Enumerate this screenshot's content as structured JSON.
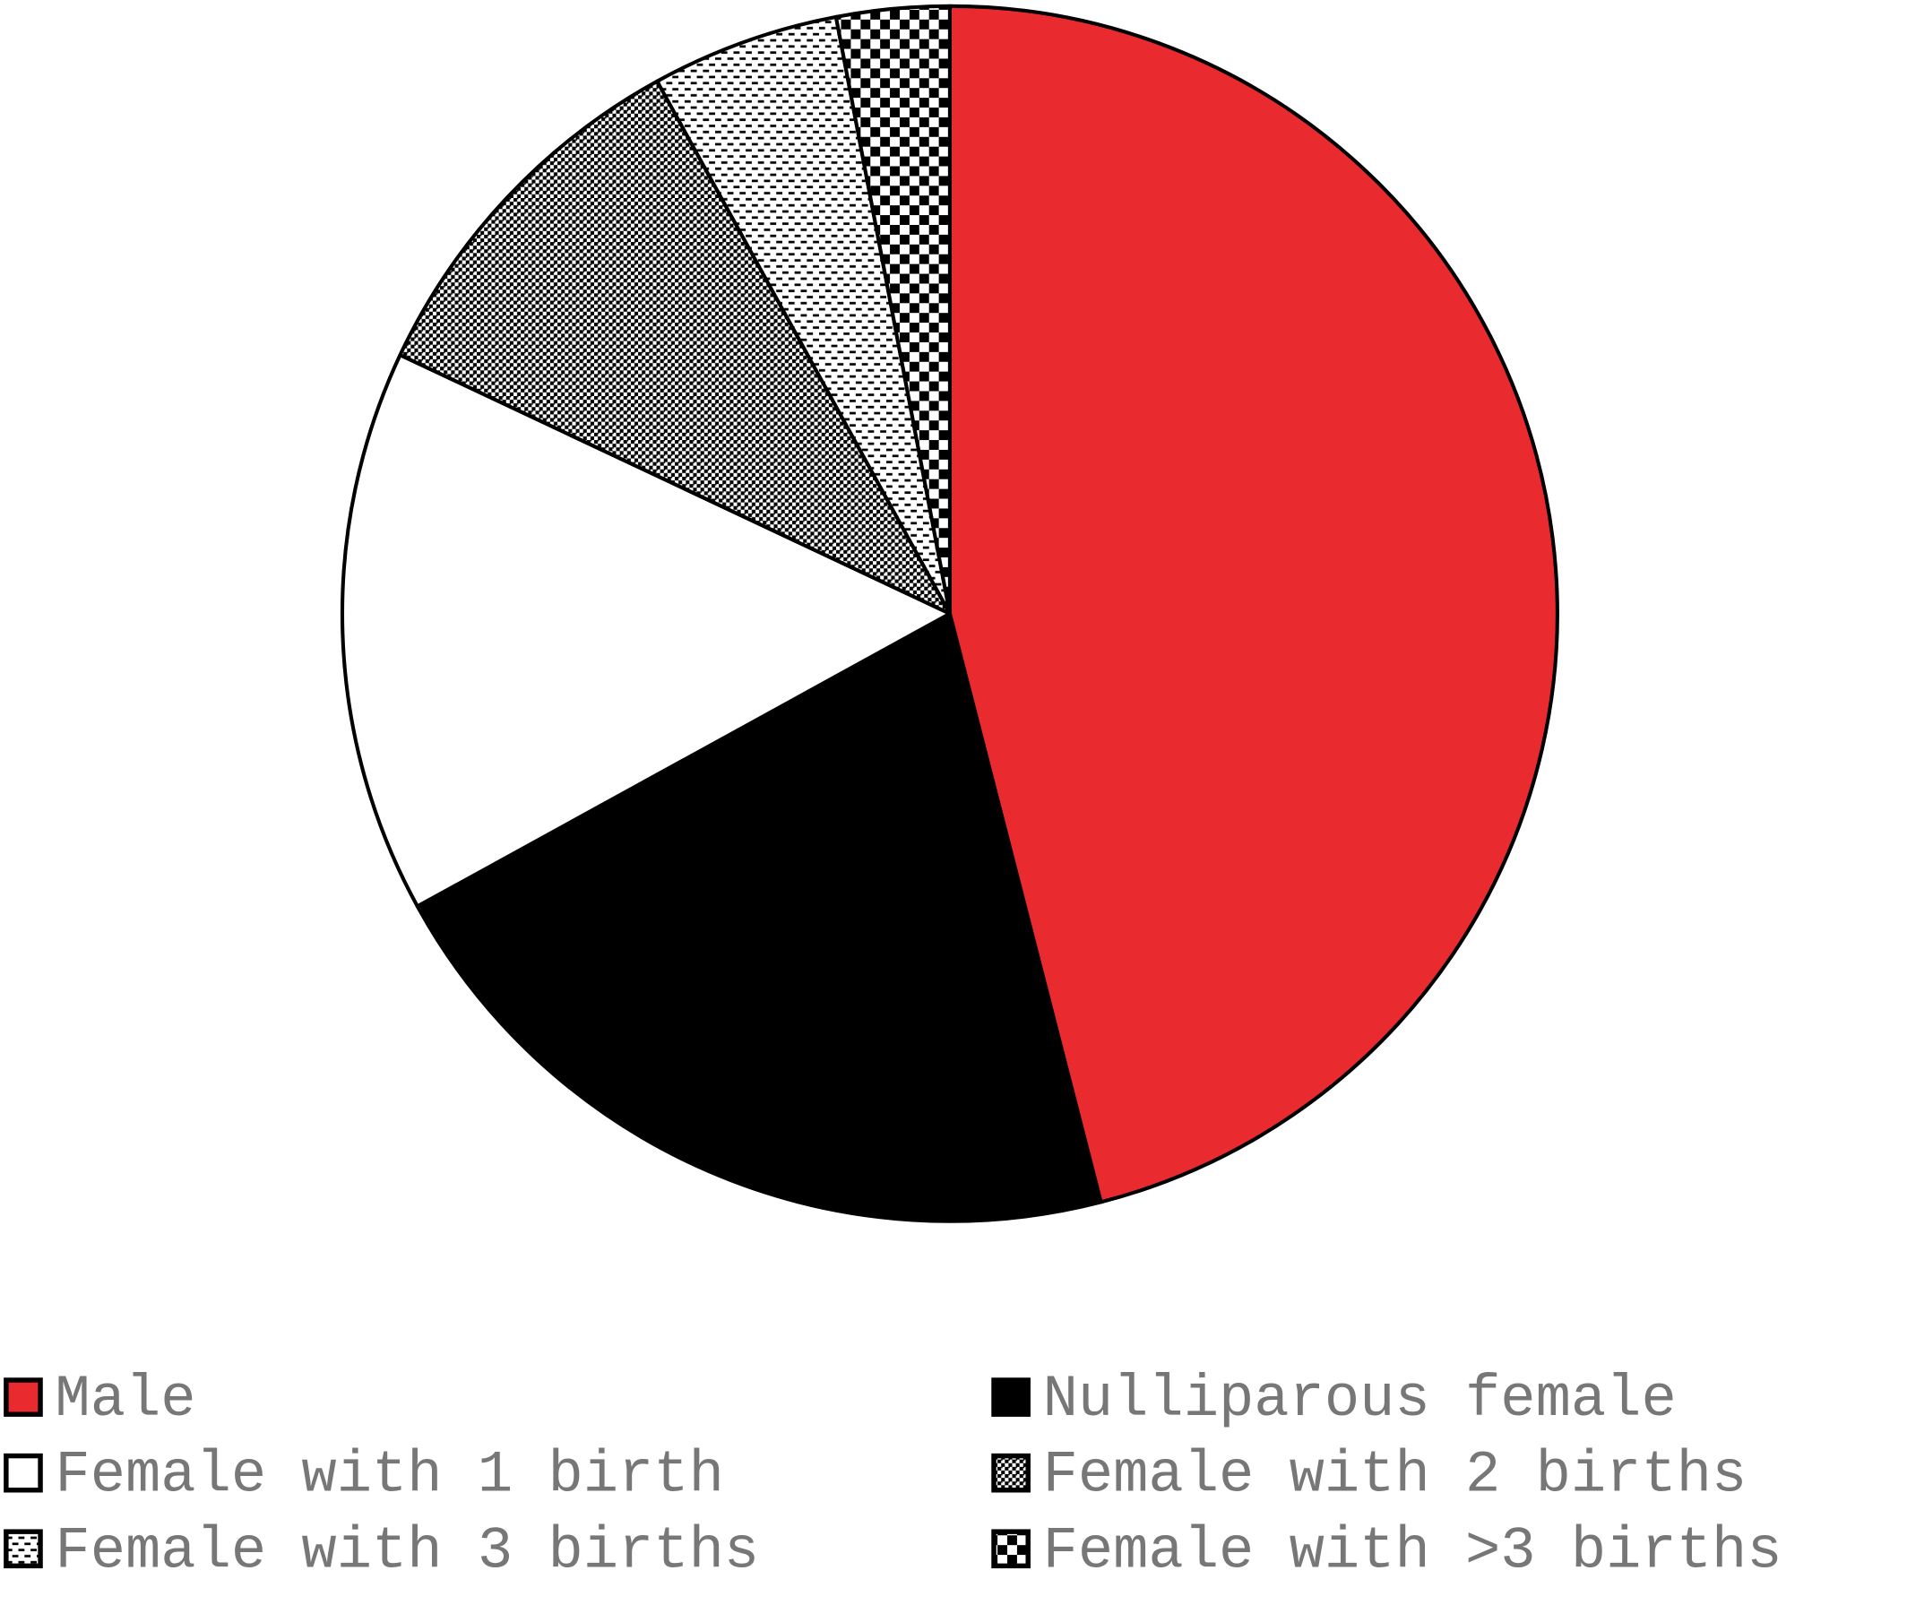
{
  "chart_data": {
    "type": "pie",
    "categories": [
      "Male",
      "Nulliparous female",
      "Female with 1 birth",
      "Female with 2 births",
      "Female with 3 births",
      "Female with >3 births"
    ],
    "values": [
      46,
      21,
      15,
      10,
      5,
      3
    ],
    "colors": [
      "#e92b2f",
      "#000000",
      "#ffffff",
      "#000000",
      "#000000",
      "#000000"
    ],
    "patterns": [
      "solid",
      "solid",
      "solid",
      "fine-dots",
      "dashes",
      "checker"
    ],
    "start_angle": 0,
    "direction": "clockwise",
    "legend": "bottom"
  }
}
